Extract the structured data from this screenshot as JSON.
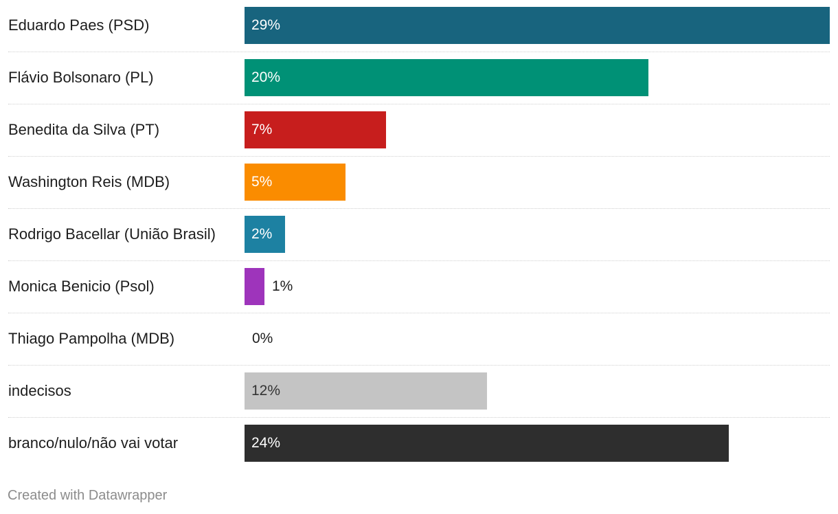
{
  "chart_data": {
    "type": "bar",
    "orientation": "horizontal",
    "categories": [
      "Eduardo Paes (PSD)",
      "Flávio Bolsonaro (PL)",
      "Benedita da Silva (PT)",
      "Washington Reis (MDB)",
      "Rodrigo Bacellar (União Brasil)",
      "Monica Benicio (Psol)",
      "Thiago Pampolha (MDB)",
      "indecisos",
      "branco/nulo/não vai votar"
    ],
    "values": [
      29,
      20,
      7,
      5,
      2,
      1,
      0,
      12,
      24
    ],
    "value_labels": [
      "29%",
      "20%",
      "7%",
      "5%",
      "2%",
      "1%",
      "0%",
      "12%",
      "24%"
    ],
    "colors": [
      "#18647e",
      "#009176",
      "#c71e1d",
      "#fa8c00",
      "#1d81a2",
      "#9e34bb",
      "#bbbbbb",
      "#c4c4c4",
      "#2e2e2e"
    ],
    "label_colors": [
      "#ffffff",
      "#ffffff",
      "#ffffff",
      "#ffffff",
      "#ffffff",
      "#1d1d1d",
      "#1d1d1d",
      "#333333",
      "#ffffff"
    ],
    "xlim": [
      0,
      29
    ],
    "unit": "%"
  },
  "footer": {
    "credit": "Created with Datawrapper"
  }
}
